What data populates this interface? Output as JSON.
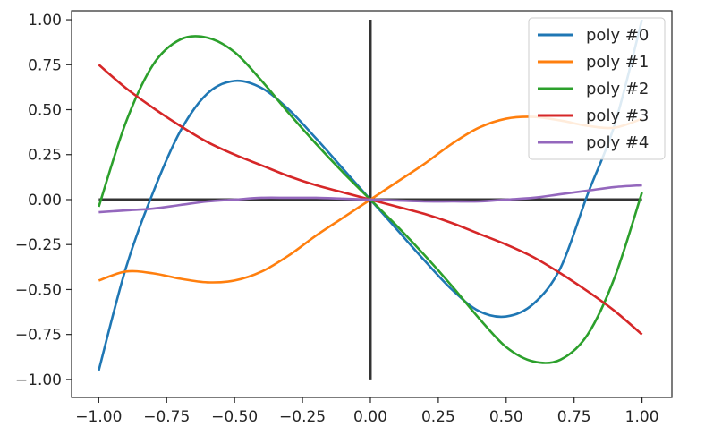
{
  "chart_data": {
    "type": "line",
    "title": "",
    "xlabel": "",
    "ylabel": "",
    "xlim": [
      -1.1,
      1.11
    ],
    "ylim": [
      -1.1,
      1.05
    ],
    "x_ticks": [
      -1.0,
      -0.75,
      -0.5,
      -0.25,
      0.0,
      0.25,
      0.5,
      0.75,
      1.0
    ],
    "x_tick_labels": [
      "−1.00",
      "−0.75",
      "−0.50",
      "−0.25",
      "0.00",
      "0.25",
      "0.50",
      "0.75",
      "1.00"
    ],
    "y_ticks": [
      1.0,
      0.75,
      0.5,
      0.25,
      0.0,
      -0.25,
      -0.5,
      -0.75,
      -1.0
    ],
    "y_tick_labels": [
      "1.00",
      "0.75",
      "0.50",
      "0.25",
      "0.00",
      "−0.25",
      "−0.50",
      "−0.75",
      "−1.00"
    ],
    "grid": false,
    "legend_position": "top-right",
    "reference_lines": [
      {
        "orientation": "horizontal",
        "value": 0.0,
        "from": -1.0,
        "to": 1.0,
        "color": "#333333"
      },
      {
        "orientation": "vertical",
        "value": 0.0,
        "from": -1.0,
        "to": 1.0,
        "color": "#333333"
      }
    ],
    "x": [
      -1.0,
      -0.9,
      -0.8,
      -0.7,
      -0.6,
      -0.5,
      -0.4,
      -0.3,
      -0.2,
      -0.1,
      0.0,
      0.1,
      0.2,
      0.3,
      0.4,
      0.5,
      0.6,
      0.7,
      0.8,
      0.9,
      1.0
    ],
    "series": [
      {
        "name": "poly #0",
        "color": "#1f77b4",
        "values": [
          -0.95,
          -0.38,
          0.04,
          0.38,
          0.59,
          0.66,
          0.62,
          0.5,
          0.34,
          0.17,
          0.0,
          -0.17,
          -0.34,
          -0.5,
          -0.62,
          -0.65,
          -0.58,
          -0.38,
          0.03,
          0.42,
          1.0
        ]
      },
      {
        "name": "poly #1",
        "color": "#ff7f0e",
        "values": [
          -0.45,
          -0.4,
          -0.41,
          -0.44,
          -0.46,
          -0.45,
          -0.4,
          -0.31,
          -0.2,
          -0.1,
          0.0,
          0.1,
          0.2,
          0.31,
          0.4,
          0.45,
          0.46,
          0.44,
          0.41,
          0.4,
          0.45
        ]
      },
      {
        "name": "poly #2",
        "color": "#2ca02c",
        "values": [
          -0.04,
          0.43,
          0.75,
          0.89,
          0.9,
          0.82,
          0.66,
          0.48,
          0.31,
          0.15,
          0.0,
          -0.15,
          -0.31,
          -0.48,
          -0.66,
          -0.82,
          -0.9,
          -0.89,
          -0.75,
          -0.43,
          0.04
        ]
      },
      {
        "name": "poly #3",
        "color": "#d62728",
        "values": [
          0.75,
          0.62,
          0.51,
          0.41,
          0.32,
          0.25,
          0.19,
          0.13,
          0.08,
          0.04,
          0.0,
          -0.04,
          -0.08,
          -0.13,
          -0.19,
          -0.25,
          -0.32,
          -0.41,
          -0.51,
          -0.62,
          -0.75
        ]
      },
      {
        "name": "poly #4",
        "color": "#9467bd",
        "values": [
          -0.07,
          -0.06,
          -0.05,
          -0.03,
          -0.01,
          0.0,
          0.01,
          0.01,
          0.01,
          0.005,
          0.0,
          -0.005,
          -0.01,
          -0.01,
          -0.01,
          0.0,
          0.01,
          0.03,
          0.05,
          0.07,
          0.08
        ]
      }
    ]
  }
}
